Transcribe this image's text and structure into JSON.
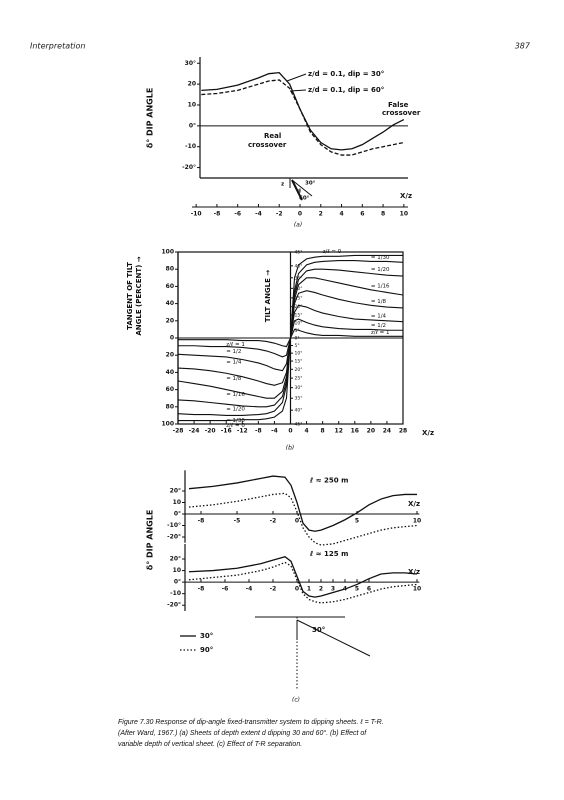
{
  "header": {
    "title": "Interpretation",
    "page": "387"
  },
  "chart_data": [
    {
      "type": "line",
      "label": "(a)",
      "y_label": "δ° DIP ANGLE",
      "x_label": "X/z",
      "xlim": [
        -10.4,
        10.4
      ],
      "ylim": [
        -25,
        33
      ],
      "xticks": [
        -10,
        -8,
        -6,
        -4,
        -2,
        0,
        2,
        4,
        6,
        8,
        10
      ],
      "yticks": [
        {
          "value": 30,
          "label": "30°"
        },
        20,
        10,
        {
          "value": 0,
          "label": "0°"
        },
        -10,
        {
          "value": -20,
          "label": "-20°"
        }
      ],
      "x": [
        -9.5,
        -8,
        -6,
        -4,
        -3,
        -2,
        -1,
        0,
        1,
        2,
        3,
        4,
        5,
        6,
        7,
        8,
        9,
        10
      ],
      "series": [
        {
          "name": "z/d = 0.1, dip = 30°",
          "color": "#111111",
          "style": "solid",
          "values": [
            17,
            17.5,
            19.5,
            23,
            25,
            25.5,
            20,
            8,
            -2,
            -8,
            -11,
            -11.5,
            -11,
            -9,
            -6,
            -3,
            0.5,
            3
          ]
        },
        {
          "name": "z/d = 0.1, dip = 60°",
          "color": "#111111",
          "style": "dashed",
          "values": [
            15,
            15.5,
            17,
            20,
            21.5,
            22,
            18,
            8,
            -3,
            -9,
            -12.5,
            -14,
            -14,
            -12.5,
            -11,
            -10,
            -9,
            -8
          ]
        }
      ],
      "annotations": [
        "False",
        "crossover",
        "Real",
        "crossover"
      ],
      "sketch_labels": [
        "z",
        "30°",
        "d",
        "60°"
      ]
    },
    {
      "type": "line",
      "label": "(b)",
      "y_label": [
        "TANGENT OF TILT",
        "ANGLE (PERCENT) →"
      ],
      "y2_label": "TILT ANGLE →",
      "x_label": "X/z",
      "xlim": [
        -28,
        28
      ],
      "ylim": [
        -100,
        100
      ],
      "y2lim": [
        -45,
        45
      ],
      "y2scale": "tan",
      "xticks": [
        -28,
        -24,
        -20,
        -16,
        -12,
        -8,
        -4,
        0,
        4,
        8,
        12,
        16,
        20,
        24,
        28
      ],
      "yticks": [
        100,
        80,
        60,
        40,
        20,
        0,
        {
          "value": -20,
          "label": "20"
        },
        {
          "value": -40,
          "label": "40"
        },
        {
          "value": -60,
          "label": "60"
        },
        {
          "value": -80,
          "label": "80"
        },
        {
          "value": -100,
          "label": "100"
        }
      ],
      "y2ticks": [
        {
          "value": 45,
          "label": "45°"
        },
        {
          "value": 40,
          "label": "40°"
        },
        {
          "value": 35,
          "label": "35°"
        },
        {
          "value": 30,
          "label": "30°"
        },
        {
          "value": 25,
          "label": "25°"
        },
        {
          "value": 20,
          "label": "20°"
        },
        {
          "value": 15,
          "label": "15°"
        },
        {
          "value": 10,
          "label": "10°"
        },
        {
          "value": 5,
          "label": "5°"
        },
        {
          "value": 0,
          "label": "0°"
        },
        {
          "value": -5,
          "label": "5°"
        },
        {
          "value": -10,
          "label": "10°"
        },
        {
          "value": -15,
          "label": "15°"
        },
        {
          "value": -20,
          "label": "20°"
        },
        {
          "value": -25,
          "label": "25°"
        },
        {
          "value": -30,
          "label": "30°"
        },
        {
          "value": -35,
          "label": "35°"
        },
        {
          "value": -40,
          "label": "40°"
        },
        {
          "value": -45,
          "label": "45°"
        }
      ],
      "x": [
        -28,
        -24,
        -20,
        -16,
        -12,
        -8,
        -6,
        -4,
        -2,
        -1,
        0,
        1,
        2,
        4,
        6,
        8,
        12,
        16,
        20,
        24,
        28
      ],
      "series": [
        {
          "name": "z/ℓ = 0",
          "color": "#111111",
          "style": "solid",
          "values": [
            -96,
            -96,
            -96,
            -96,
            -95,
            -95,
            -94,
            -92,
            -85,
            -70,
            0,
            70,
            85,
            92,
            94,
            95,
            95,
            96,
            96,
            96,
            96
          ]
        },
        {
          "name": "= 1/30",
          "color": "#111111",
          "style": "solid",
          "values": [
            -88,
            -89,
            -89,
            -90,
            -90,
            -89,
            -88,
            -85,
            -75,
            -55,
            0,
            55,
            75,
            85,
            88,
            89,
            90,
            90,
            89,
            89,
            88
          ]
        },
        {
          "name": "= 1/20",
          "color": "#111111",
          "style": "solid",
          "values": [
            -72,
            -73,
            -75,
            -77,
            -79,
            -80,
            -80,
            -78,
            -68,
            -50,
            0,
            50,
            68,
            78,
            80,
            80,
            79,
            77,
            75,
            73,
            72
          ]
        },
        {
          "name": "= 1/16",
          "color": "#111111",
          "style": "solid",
          "values": [
            -50,
            -53,
            -56,
            -60,
            -64,
            -68,
            -70,
            -70,
            -62,
            -45,
            0,
            45,
            62,
            70,
            70,
            68,
            64,
            60,
            56,
            53,
            50
          ]
        },
        {
          "name": "= 1/8",
          "color": "#111111",
          "style": "solid",
          "values": [
            -35,
            -36,
            -38,
            -41,
            -45,
            -50,
            -53,
            -55,
            -52,
            -40,
            0,
            40,
            52,
            55,
            53,
            50,
            45,
            41,
            38,
            36,
            35
          ]
        },
        {
          "name": "= 1/4",
          "color": "#111111",
          "style": "solid",
          "values": [
            -19,
            -20,
            -21,
            -22,
            -25,
            -29,
            -32,
            -36,
            -38,
            -30,
            0,
            30,
            38,
            36,
            32,
            29,
            25,
            22,
            21,
            20,
            19
          ]
        },
        {
          "name": "= 1/2",
          "color": "#111111",
          "style": "solid",
          "values": [
            -9,
            -9,
            -10,
            -10,
            -11,
            -13,
            -15,
            -18,
            -22,
            -20,
            0,
            20,
            22,
            18,
            15,
            13,
            11,
            10,
            10,
            9,
            9
          ]
        },
        {
          "name": "z/ℓ = 1",
          "color": "#111111",
          "style": "solid",
          "values": [
            -2,
            -2,
            -2,
            -2,
            -3,
            -3,
            -4,
            -6,
            -9,
            -10,
            0,
            10,
            9,
            6,
            4,
            3,
            3,
            2,
            2,
            2,
            2
          ]
        }
      ]
    },
    {
      "type": "line",
      "y_label": "δ° DIP ANGLE",
      "x_label": "X/z",
      "annotation": "ℓ ≈ 250 m",
      "xlim": [
        -9.3,
        10.2
      ],
      "ylim": [
        -25,
        38
      ],
      "xticks": [
        -8,
        -5,
        -2,
        0,
        5,
        10
      ],
      "yticks": [
        {
          "value": 20,
          "label": "20°"
        },
        10,
        {
          "value": 0,
          "label": "0°"
        },
        {
          "value": -10,
          "label": "-10°"
        },
        {
          "value": -20,
          "label": "-20°"
        }
      ],
      "x": [
        -9,
        -7,
        -5,
        -3,
        -2,
        -1,
        -0.5,
        0,
        0.5,
        1,
        1.5,
        2,
        3,
        4,
        5,
        6,
        7,
        8,
        9,
        10
      ],
      "series": [
        {
          "name": "30°",
          "color": "#111111",
          "style": "solid",
          "values": [
            22,
            24,
            27,
            31,
            33,
            32,
            25,
            10,
            -8,
            -14,
            -15,
            -14,
            -10,
            -5,
            1,
            8,
            13,
            16,
            17,
            17
          ]
        },
        {
          "name": "90°",
          "color": "#111111",
          "style": "dotted",
          "values": [
            6,
            8,
            11,
            15,
            17,
            18,
            14,
            2,
            -12,
            -20,
            -25,
            -27,
            -26,
            -23,
            -20,
            -17,
            -14,
            -12,
            -11,
            -10
          ]
        }
      ]
    },
    {
      "type": "line",
      "label": "(c)",
      "x_label": "X/z",
      "annotation": "ℓ ≈ 125 m",
      "sketch_label": "30°",
      "xlim": [
        -9.3,
        10.2
      ],
      "ylim": [
        -25,
        33
      ],
      "xticks": [
        -8,
        -6,
        -4,
        -2,
        0,
        1,
        2,
        3,
        4,
        5,
        6,
        10
      ],
      "yticks": [
        {
          "value": 20,
          "label": "20°"
        },
        10,
        {
          "value": 0,
          "label": "0°"
        },
        -10,
        {
          "value": -20,
          "label": "-20°"
        }
      ],
      "x": [
        -9,
        -7,
        -5,
        -3,
        -2,
        -1,
        -0.5,
        0,
        0.5,
        1,
        1.5,
        2,
        3,
        4,
        5,
        6,
        7,
        8,
        9,
        10
      ],
      "series": [
        {
          "color": "#111111",
          "style": "solid",
          "values": [
            9,
            10,
            12,
            16,
            19,
            22,
            18,
            5,
            -8,
            -12,
            -13,
            -12,
            -9,
            -6,
            -2,
            3,
            7,
            8,
            8,
            7
          ]
        },
        {
          "color": "#111111",
          "style": "dotted",
          "values": [
            2,
            4,
            6,
            10,
            13,
            17,
            14,
            2,
            -10,
            -15,
            -17,
            -18,
            -17,
            -15,
            -12,
            -9,
            -6,
            -4,
            -3,
            -2
          ]
        }
      ]
    }
  ],
  "caption": [
    "Figure 7.30  Response of dip-angle fixed-transmitter system to dipping sheets. ℓ = T-R.",
    "(After Ward, 1967.) (a) Sheets of depth extent d dipping 30 and 60°. (b) Effect of",
    "variable depth of vertical sheet. (c) Effect of T-R separation."
  ]
}
